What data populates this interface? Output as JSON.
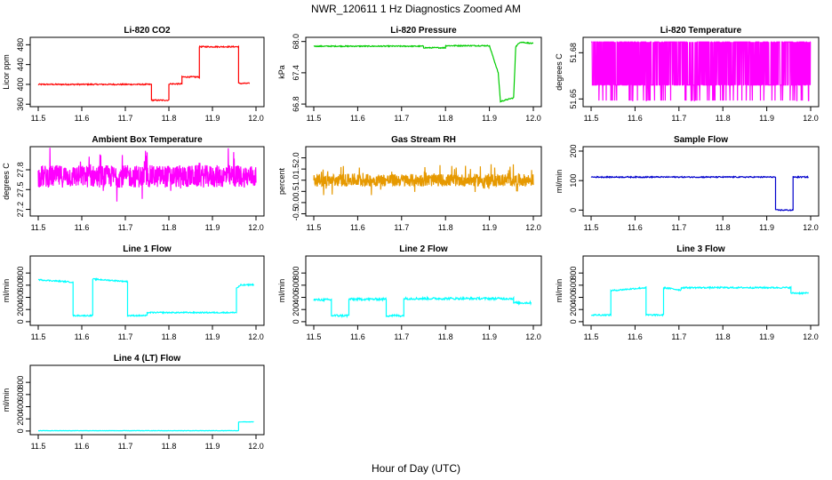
{
  "figure": {
    "title": "NWR_120611  1 Hz Diagnostics Zoomed AM",
    "xlabel": "Hour of Day (UTC)"
  },
  "chart_data": [
    {
      "type": "line",
      "title": "Li-820 CO2",
      "ylabel": "Licor ppm",
      "color": "#ff0000",
      "xlim": [
        11.5,
        12.0
      ],
      "ylim": [
        355,
        495
      ],
      "xticks": [
        "11.5",
        "11.6",
        "11.7",
        "11.8",
        "11.9",
        "12.0"
      ],
      "yticks": [
        {
          "v": 360,
          "label": "360"
        },
        {
          "v": 400,
          "label": "400"
        },
        {
          "v": 440,
          "label": "440"
        },
        {
          "v": 480,
          "label": "480"
        }
      ],
      "noise": 1.2,
      "series": [
        {
          "x": [
            11.5,
            11.76,
            11.76,
            11.8,
            11.8,
            11.83,
            11.83,
            11.87,
            11.87,
            11.96,
            11.96,
            11.985
          ],
          "y": [
            400,
            400,
            368,
            368,
            401,
            401,
            415,
            415,
            476,
            476,
            402,
            402
          ]
        }
      ]
    },
    {
      "type": "line",
      "title": "Li-820 Pressure",
      "ylabel": "kPa",
      "color": "#00cc00",
      "xlim": [
        11.5,
        12.0
      ],
      "ylim": [
        66.75,
        68.08
      ],
      "xticks": [
        "11.5",
        "11.6",
        "11.7",
        "11.8",
        "11.9",
        "12.0"
      ],
      "yticks": [
        {
          "v": 66.8,
          "label": "66.8"
        },
        {
          "v": 67.4,
          "label": "67.4"
        },
        {
          "v": 68.0,
          "label": "68.0"
        }
      ],
      "noise": 0.01,
      "series": [
        {
          "x": [
            11.5,
            11.75,
            11.75,
            11.8,
            11.8,
            11.9,
            11.9,
            11.92,
            11.92,
            11.925,
            11.925,
            11.955,
            11.955,
            11.96,
            11.96,
            11.97,
            11.97,
            12.0
          ],
          "y": [
            67.91,
            67.91,
            67.88,
            67.88,
            67.92,
            67.92,
            67.92,
            67.4,
            67.4,
            66.85,
            66.85,
            66.92,
            66.92,
            67.9,
            67.9,
            67.99,
            67.99,
            67.96
          ]
        }
      ]
    },
    {
      "type": "line",
      "title": "Li-820 Temperature",
      "ylabel": "degrees C",
      "color": "#ff00ff",
      "xlim": [
        11.5,
        12.0
      ],
      "ylim": [
        51.645,
        51.69
      ],
      "xticks": [
        "11.5",
        "11.6",
        "11.7",
        "11.8",
        "11.9",
        "12.0"
      ],
      "yticks": [
        {
          "v": 51.65,
          "label": "51.65"
        },
        {
          "v": 51.68,
          "label": "51.68"
        }
      ],
      "pattern": "binary",
      "levels": [
        51.659,
        51.687
      ],
      "xrange": [
        11.5,
        12.0
      ]
    },
    {
      "type": "line",
      "title": "Ambient Box Temperature",
      "ylabel": "degrees C",
      "color": "#ff00ff",
      "xlim": [
        11.5,
        12.0
      ],
      "ylim": [
        27.1,
        28.15
      ],
      "xticks": [
        "11.5",
        "11.6",
        "11.7",
        "11.8",
        "11.9",
        "12.0"
      ],
      "yticks": [
        {
          "v": 27.2,
          "label": "27.2"
        },
        {
          "v": 27.5,
          "label": "27.5"
        },
        {
          "v": 27.8,
          "label": "27.8"
        }
      ],
      "pattern": "noise",
      "center": 27.7,
      "amp": 0.17,
      "xrange": [
        11.5,
        12.0
      ]
    },
    {
      "type": "line",
      "title": "Gas Stream RH",
      "ylabel": "percent",
      "color": "#e69900",
      "xlim": [
        11.5,
        12.0
      ],
      "ylim": [
        -0.6,
        2.5
      ],
      "xticks": [
        "11.5",
        "11.6",
        "11.7",
        "11.8",
        "11.9",
        "12.0"
      ],
      "yticks": [
        {
          "v": -0.5,
          "label": "-0.5"
        },
        {
          "v": 0.0,
          "label": "0.0"
        },
        {
          "v": 0.5,
          "label": "0.5"
        },
        {
          "v": 1.0,
          "label": "1.0"
        },
        {
          "v": 1.5,
          "label": "1.5"
        },
        {
          "v": 2.0,
          "label": "2.0"
        }
      ],
      "pattern": "noise",
      "center": 1.0,
      "amp": 0.28,
      "xrange": [
        11.5,
        12.0
      ]
    },
    {
      "type": "line",
      "title": "Sample Flow",
      "ylabel": "ml/min",
      "color": "#0000cc",
      "xlim": [
        11.5,
        12.0
      ],
      "ylim": [
        -20,
        215
      ],
      "xticks": [
        "11.5",
        "11.6",
        "11.7",
        "11.8",
        "11.9",
        "12.0"
      ],
      "yticks": [
        {
          "v": 0,
          "label": "0"
        },
        {
          "v": 100,
          "label": "100"
        },
        {
          "v": 200,
          "label": "200"
        }
      ],
      "noise": 2,
      "series": [
        {
          "x": [
            11.5,
            11.92,
            11.92,
            11.96,
            11.96,
            11.995
          ],
          "y": [
            112,
            112,
            0,
            0,
            112,
            112
          ]
        }
      ]
    },
    {
      "type": "line",
      "title": "Line 1 Flow",
      "ylabel": "ml/min",
      "color": "#00ffff",
      "xlim": [
        11.5,
        12.0
      ],
      "ylim": [
        -60,
        1080
      ],
      "xticks": [
        "11.5",
        "11.6",
        "11.7",
        "11.8",
        "11.9",
        "12.0"
      ],
      "yticks": [
        {
          "v": 0,
          "label": "0"
        },
        {
          "v": 200,
          "label": "200"
        },
        {
          "v": 400,
          "label": "400"
        },
        {
          "v": 600,
          "label": "600"
        },
        {
          "v": 800,
          "label": "800"
        }
      ],
      "noise": 10,
      "series": [
        {
          "x": [
            11.5,
            11.58,
            11.58,
            11.625,
            11.625,
            11.705,
            11.705,
            11.75,
            11.75,
            11.955,
            11.955,
            11.965,
            11.965,
            11.995
          ],
          "y": [
            690,
            650,
            100,
            100,
            700,
            660,
            100,
            100,
            150,
            150,
            550,
            600,
            600,
            610
          ]
        }
      ]
    },
    {
      "type": "line",
      "title": "Line 2 Flow",
      "ylabel": "ml/min",
      "color": "#00ffff",
      "xlim": [
        11.5,
        12.0
      ],
      "ylim": [
        -60,
        1080
      ],
      "xticks": [
        "11.5",
        "11.6",
        "11.7",
        "11.8",
        "11.9",
        "12.0"
      ],
      "yticks": [
        {
          "v": 0,
          "label": "0"
        },
        {
          "v": 200,
          "label": "200"
        },
        {
          "v": 400,
          "label": "400"
        },
        {
          "v": 600,
          "label": "600"
        },
        {
          "v": 800,
          "label": "800"
        }
      ],
      "noise": 18,
      "series": [
        {
          "x": [
            11.5,
            11.54,
            11.54,
            11.58,
            11.58,
            11.665,
            11.665,
            11.705,
            11.705,
            11.955,
            11.955,
            11.995
          ],
          "y": [
            360,
            360,
            100,
            100,
            370,
            370,
            100,
            100,
            380,
            380,
            310,
            310
          ]
        }
      ]
    },
    {
      "type": "line",
      "title": "Line 3 Flow",
      "ylabel": "ml/min",
      "color": "#00ffff",
      "xlim": [
        11.5,
        12.0
      ],
      "ylim": [
        -60,
        1080
      ],
      "xticks": [
        "11.5",
        "11.6",
        "11.7",
        "11.8",
        "11.9",
        "12.0"
      ],
      "yticks": [
        {
          "v": 0,
          "label": "0"
        },
        {
          "v": 200,
          "label": "200"
        },
        {
          "v": 400,
          "label": "400"
        },
        {
          "v": 600,
          "label": "600"
        },
        {
          "v": 800,
          "label": "800"
        }
      ],
      "noise": 12,
      "series": [
        {
          "x": [
            11.5,
            11.545,
            11.545,
            11.625,
            11.625,
            11.665,
            11.665,
            11.705,
            11.705,
            11.955,
            11.955,
            11.995
          ],
          "y": [
            110,
            110,
            510,
            560,
            110,
            110,
            560,
            520,
            560,
            560,
            470,
            470
          ]
        }
      ]
    },
    {
      "type": "line",
      "title": "Line 4 (LT) Flow",
      "ylabel": "ml/min",
      "color": "#00ffff",
      "xlim": [
        11.5,
        12.0
      ],
      "ylim": [
        -60,
        1080
      ],
      "xticks": [
        "11.5",
        "11.6",
        "11.7",
        "11.8",
        "11.9",
        "12.0"
      ],
      "yticks": [
        {
          "v": 0,
          "label": "0"
        },
        {
          "v": 200,
          "label": "200"
        },
        {
          "v": 400,
          "label": "400"
        },
        {
          "v": 600,
          "label": "600"
        },
        {
          "v": 800,
          "label": "800"
        }
      ],
      "noise": 3,
      "series": [
        {
          "x": [
            11.5,
            11.96,
            11.96,
            11.995
          ],
          "y": [
            5,
            5,
            150,
            150
          ]
        }
      ]
    }
  ]
}
